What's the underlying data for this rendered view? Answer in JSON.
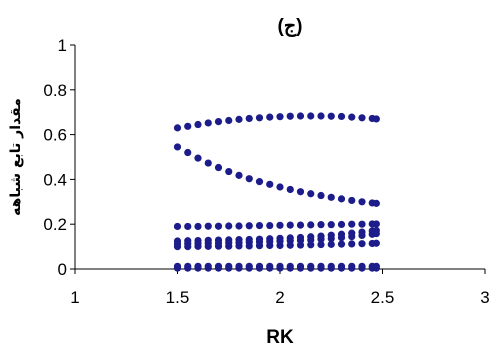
{
  "chart_data": {
    "type": "scatter",
    "title": "(ج)",
    "xlabel": "RK",
    "ylabel": "مقدار تابع شباهه",
    "xlim": [
      1,
      3
    ],
    "ylim": [
      0,
      1
    ],
    "xticks": [
      "1",
      "1.5",
      "2",
      "2.5",
      "3"
    ],
    "yticks": [
      "0",
      "0.2",
      "0.4",
      "0.6",
      "0.8",
      "1"
    ],
    "grid": false,
    "legend": "none",
    "marker_color": "#1c1c8a",
    "series": [
      {
        "x": [
          1.5,
          1.55,
          1.6,
          1.65,
          1.7,
          1.75,
          1.8,
          1.85,
          1.9,
          1.95,
          2.0,
          2.05,
          2.1,
          2.15,
          2.2,
          2.25,
          2.3,
          2.35,
          2.4,
          2.45,
          2.47
        ],
        "y": [
          0.63,
          0.637,
          0.645,
          0.652,
          0.658,
          0.663,
          0.668,
          0.672,
          0.675,
          0.678,
          0.68,
          0.682,
          0.683,
          0.683,
          0.683,
          0.682,
          0.681,
          0.678,
          0.675,
          0.672,
          0.67
        ]
      },
      {
        "x": [
          1.5,
          1.55,
          1.6,
          1.65,
          1.7,
          1.75,
          1.8,
          1.85,
          1.9,
          1.95,
          2.0,
          2.05,
          2.1,
          2.15,
          2.2,
          2.25,
          2.3,
          2.35,
          2.4,
          2.45,
          2.47
        ],
        "y": [
          0.545,
          0.52,
          0.495,
          0.473,
          0.453,
          0.435,
          0.418,
          0.403,
          0.39,
          0.378,
          0.366,
          0.355,
          0.345,
          0.336,
          0.328,
          0.32,
          0.313,
          0.306,
          0.3,
          0.295,
          0.293
        ]
      },
      {
        "x": [
          1.5,
          1.55,
          1.6,
          1.65,
          1.7,
          1.75,
          1.8,
          1.85,
          1.9,
          1.95,
          2.0,
          2.05,
          2.1,
          2.15,
          2.2,
          2.25,
          2.3,
          2.35,
          2.4,
          2.45,
          2.47
        ],
        "y": [
          0.19,
          0.19,
          0.19,
          0.191,
          0.191,
          0.192,
          0.192,
          0.193,
          0.194,
          0.194,
          0.195,
          0.196,
          0.196,
          0.197,
          0.198,
          0.198,
          0.199,
          0.2,
          0.2,
          0.201,
          0.201
        ]
      },
      {
        "x": [
          1.5,
          1.55,
          1.6,
          1.65,
          1.7,
          1.75,
          1.8,
          1.85,
          1.9,
          1.95,
          2.0,
          2.05,
          2.1,
          2.15,
          2.2,
          2.25,
          2.3,
          2.35,
          2.4,
          2.45,
          2.47
        ],
        "y": [
          0.125,
          0.126,
          0.127,
          0.128,
          0.129,
          0.13,
          0.131,
          0.132,
          0.133,
          0.135,
          0.137,
          0.139,
          0.141,
          0.144,
          0.147,
          0.151,
          0.155,
          0.16,
          0.165,
          0.17,
          0.172
        ]
      },
      {
        "x": [
          1.5,
          1.55,
          1.6,
          1.65,
          1.7,
          1.75,
          1.8,
          1.85,
          1.9,
          1.95,
          2.0,
          2.05,
          2.1,
          2.15,
          2.2,
          2.25,
          2.3,
          2.35,
          2.4,
          2.45,
          2.47
        ],
        "y": [
          0.112,
          0.113,
          0.114,
          0.115,
          0.116,
          0.117,
          0.118,
          0.12,
          0.121,
          0.123,
          0.124,
          0.126,
          0.128,
          0.13,
          0.133,
          0.136,
          0.14,
          0.145,
          0.15,
          0.155,
          0.158
        ]
      },
      {
        "x": [
          1.5,
          1.55,
          1.6,
          1.65,
          1.7,
          1.75,
          1.8,
          1.85,
          1.9,
          1.95,
          2.0,
          2.05,
          2.1,
          2.15,
          2.2,
          2.25,
          2.3,
          2.35,
          2.4,
          2.45,
          2.47
        ],
        "y": [
          0.1,
          0.1,
          0.101,
          0.101,
          0.102,
          0.102,
          0.103,
          0.103,
          0.104,
          0.105,
          0.105,
          0.106,
          0.107,
          0.108,
          0.109,
          0.11,
          0.111,
          0.112,
          0.113,
          0.114,
          0.115
        ]
      },
      {
        "x": [
          1.5,
          1.55,
          1.6,
          1.65,
          1.7,
          1.75,
          1.8,
          1.85,
          1.9,
          1.95,
          2.0,
          2.05,
          2.1,
          2.15,
          2.2,
          2.25,
          2.3,
          2.35,
          2.4,
          2.45,
          2.47
        ],
        "y": [
          0.012,
          0.012,
          0.012,
          0.012,
          0.012,
          0.012,
          0.012,
          0.012,
          0.012,
          0.012,
          0.012,
          0.012,
          0.012,
          0.012,
          0.012,
          0.012,
          0.012,
          0.012,
          0.012,
          0.012,
          0.012
        ]
      },
      {
        "x": [
          1.5,
          1.55,
          1.6,
          1.65,
          1.7,
          1.75,
          1.8,
          1.85,
          1.9,
          1.95,
          2.0,
          2.05,
          2.1,
          2.15,
          2.2,
          2.25,
          2.3,
          2.35,
          2.4,
          2.45,
          2.47
        ],
        "y": [
          0.004,
          0.004,
          0.004,
          0.004,
          0.004,
          0.004,
          0.004,
          0.004,
          0.004,
          0.004,
          0.004,
          0.004,
          0.004,
          0.004,
          0.004,
          0.004,
          0.004,
          0.004,
          0.004,
          0.004,
          0.004
        ]
      }
    ]
  }
}
